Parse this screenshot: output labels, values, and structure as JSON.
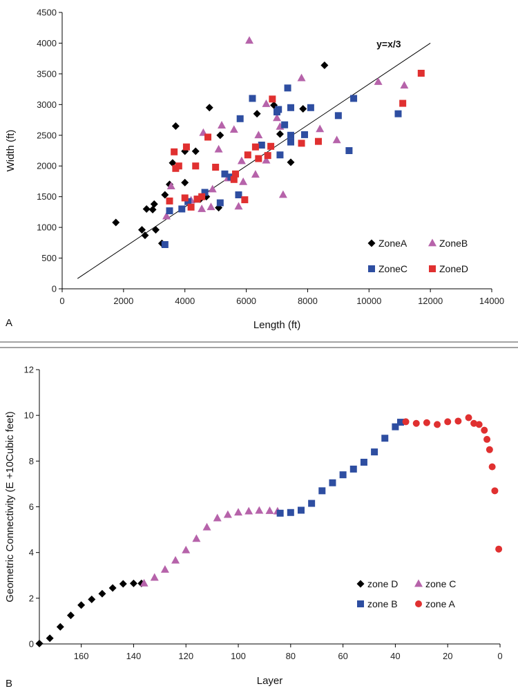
{
  "chart_data": [
    {
      "panel_label": "A",
      "type": "scatter",
      "xlabel": "Length (ft)",
      "ylabel": "Width (ft)",
      "xlim": [
        0,
        14000
      ],
      "ylim": [
        0,
        4500
      ],
      "xticks": [
        0,
        2000,
        4000,
        6000,
        8000,
        10000,
        12000,
        14000
      ],
      "yticks": [
        0,
        500,
        1000,
        1500,
        2000,
        2500,
        3000,
        3500,
        4000,
        4500
      ],
      "grid": false,
      "legend_position": "bottom-right",
      "trendline": {
        "label": "y=x/3",
        "x": [
          500,
          12000
        ],
        "y": [
          167,
          4000
        ]
      },
      "series": [
        {
          "name": "ZoneA",
          "marker": "diamond",
          "color": "#000000",
          "points": [
            [
              1750,
              1080
            ],
            [
              2600,
              960
            ],
            [
              2700,
              870
            ],
            [
              2750,
              1300
            ],
            [
              2950,
              1290
            ],
            [
              3000,
              1380
            ],
            [
              3050,
              960
            ],
            [
              3250,
              740
            ],
            [
              3350,
              1530
            ],
            [
              3500,
              1700
            ],
            [
              3600,
              2050
            ],
            [
              3700,
              2650
            ],
            [
              4000,
              1730
            ],
            [
              4000,
              2240
            ],
            [
              4350,
              2240
            ],
            [
              4500,
              1460
            ],
            [
              4700,
              1500
            ],
            [
              4800,
              2950
            ],
            [
              5100,
              1320
            ],
            [
              5150,
              2500
            ],
            [
              6350,
              2850
            ],
            [
              6900,
              2990
            ],
            [
              7100,
              2520
            ],
            [
              7450,
              2060
            ],
            [
              7850,
              2930
            ],
            [
              8550,
              3640
            ]
          ]
        },
        {
          "name": "ZoneB",
          "marker": "triangle",
          "color": "#B663AA",
          "points": [
            [
              3400,
              1180
            ],
            [
              3550,
              1670
            ],
            [
              4200,
              1440
            ],
            [
              4550,
              1300
            ],
            [
              4600,
              2540
            ],
            [
              4850,
              1330
            ],
            [
              4900,
              1620
            ],
            [
              5100,
              2270
            ],
            [
              5200,
              2660
            ],
            [
              5400,
              1800
            ],
            [
              5600,
              2590
            ],
            [
              5750,
              1340
            ],
            [
              5850,
              2080
            ],
            [
              5900,
              1740
            ],
            [
              6100,
              4040
            ],
            [
              6300,
              1860
            ],
            [
              6400,
              2500
            ],
            [
              6650,
              2090
            ],
            [
              6650,
              3010
            ],
            [
              7000,
              2780
            ],
            [
              7100,
              2640
            ],
            [
              7200,
              1530
            ],
            [
              7800,
              3430
            ],
            [
              8400,
              2600
            ],
            [
              8950,
              2420
            ],
            [
              10300,
              3370
            ],
            [
              11150,
              3310
            ]
          ]
        },
        {
          "name": "ZoneC",
          "marker": "square",
          "color": "#2E4EA1",
          "points": [
            [
              3350,
              720
            ],
            [
              3500,
              1270
            ],
            [
              3900,
              1300
            ],
            [
              4100,
              1420
            ],
            [
              4400,
              1460
            ],
            [
              4650,
              1570
            ],
            [
              5150,
              1400
            ],
            [
              5300,
              1870
            ],
            [
              5500,
              1820
            ],
            [
              5750,
              1530
            ],
            [
              5800,
              2770
            ],
            [
              6200,
              3100
            ],
            [
              6500,
              2340
            ],
            [
              7000,
              2880
            ],
            [
              7050,
              2920
            ],
            [
              7100,
              2180
            ],
            [
              7250,
              2670
            ],
            [
              7350,
              3270
            ],
            [
              7450,
              2500
            ],
            [
              7450,
              2390
            ],
            [
              7450,
              2950
            ],
            [
              7900,
              2510
            ],
            [
              8100,
              2950
            ],
            [
              9000,
              2820
            ],
            [
              9350,
              2250
            ],
            [
              9500,
              3100
            ],
            [
              10950,
              2850
            ]
          ]
        },
        {
          "name": "ZoneD",
          "marker": "square",
          "color": "#E03030",
          "points": [
            [
              3500,
              1430
            ],
            [
              3650,
              2230
            ],
            [
              3700,
              1960
            ],
            [
              3800,
              2000
            ],
            [
              4000,
              1480
            ],
            [
              4050,
              2310
            ],
            [
              4200,
              1330
            ],
            [
              4350,
              2000
            ],
            [
              4400,
              1460
            ],
            [
              4550,
              1500
            ],
            [
              4750,
              2470
            ],
            [
              5000,
              1980
            ],
            [
              5600,
              1780
            ],
            [
              5650,
              1870
            ],
            [
              5950,
              1450
            ],
            [
              6050,
              2180
            ],
            [
              6300,
              2310
            ],
            [
              6400,
              2120
            ],
            [
              6700,
              2170
            ],
            [
              6800,
              2320
            ],
            [
              6850,
              3090
            ],
            [
              7800,
              2370
            ],
            [
              8350,
              2400
            ],
            [
              11100,
              3020
            ],
            [
              11700,
              3510
            ]
          ]
        }
      ]
    },
    {
      "panel_label": "B",
      "type": "scatter",
      "xlabel": "Layer",
      "ylabel": "Geometric Connectivity (E +10Cubic feet)",
      "xlim": [
        176,
        0
      ],
      "ylim": [
        0,
        12
      ],
      "xticks": [
        160,
        140,
        120,
        100,
        80,
        60,
        40,
        20,
        0
      ],
      "yticks": [
        0,
        2,
        4,
        6,
        8,
        10,
        12
      ],
      "x_reversed": true,
      "grid": false,
      "legend_position": "bottom-right",
      "series": [
        {
          "name": "zone D",
          "marker": "diamond",
          "color": "#000000",
          "points": [
            [
              176,
              0.02
            ],
            [
              172,
              0.25
            ],
            [
              168,
              0.75
            ],
            [
              164,
              1.25
            ],
            [
              160,
              1.7
            ],
            [
              156,
              1.95
            ],
            [
              152,
              2.2
            ],
            [
              148,
              2.45
            ],
            [
              144,
              2.63
            ],
            [
              140,
              2.65
            ],
            [
              137,
              2.65
            ]
          ]
        },
        {
          "name": "zone C",
          "marker": "triangle",
          "color": "#B663AA",
          "points": [
            [
              136,
              2.65
            ],
            [
              132,
              2.9
            ],
            [
              128,
              3.25
            ],
            [
              124,
              3.65
            ],
            [
              120,
              4.1
            ],
            [
              116,
              4.6
            ],
            [
              112,
              5.1
            ],
            [
              108,
              5.5
            ],
            [
              104,
              5.65
            ],
            [
              100,
              5.75
            ],
            [
              96,
              5.8
            ],
            [
              92,
              5.83
            ],
            [
              88,
              5.82
            ],
            [
              85,
              5.8
            ]
          ]
        },
        {
          "name": "zone B",
          "marker": "square",
          "color": "#2E4EA1",
          "points": [
            [
              84,
              5.72
            ],
            [
              80,
              5.75
            ],
            [
              76,
              5.85
            ],
            [
              72,
              6.15
            ],
            [
              68,
              6.7
            ],
            [
              64,
              7.05
            ],
            [
              60,
              7.4
            ],
            [
              56,
              7.65
            ],
            [
              52,
              7.95
            ],
            [
              48,
              8.4
            ],
            [
              44,
              9.0
            ],
            [
              40,
              9.5
            ],
            [
              38,
              9.7
            ]
          ]
        },
        {
          "name": "zone A",
          "marker": "circle",
          "color": "#E03030",
          "points": [
            [
              36,
              9.72
            ],
            [
              32,
              9.65
            ],
            [
              28,
              9.68
            ],
            [
              24,
              9.6
            ],
            [
              20,
              9.72
            ],
            [
              16,
              9.75
            ],
            [
              12,
              9.9
            ],
            [
              10,
              9.65
            ],
            [
              8,
              9.6
            ],
            [
              6,
              9.35
            ],
            [
              5,
              8.95
            ],
            [
              4,
              8.5
            ],
            [
              3,
              7.75
            ],
            [
              2,
              6.7
            ],
            [
              0.5,
              4.15
            ]
          ]
        }
      ]
    }
  ]
}
